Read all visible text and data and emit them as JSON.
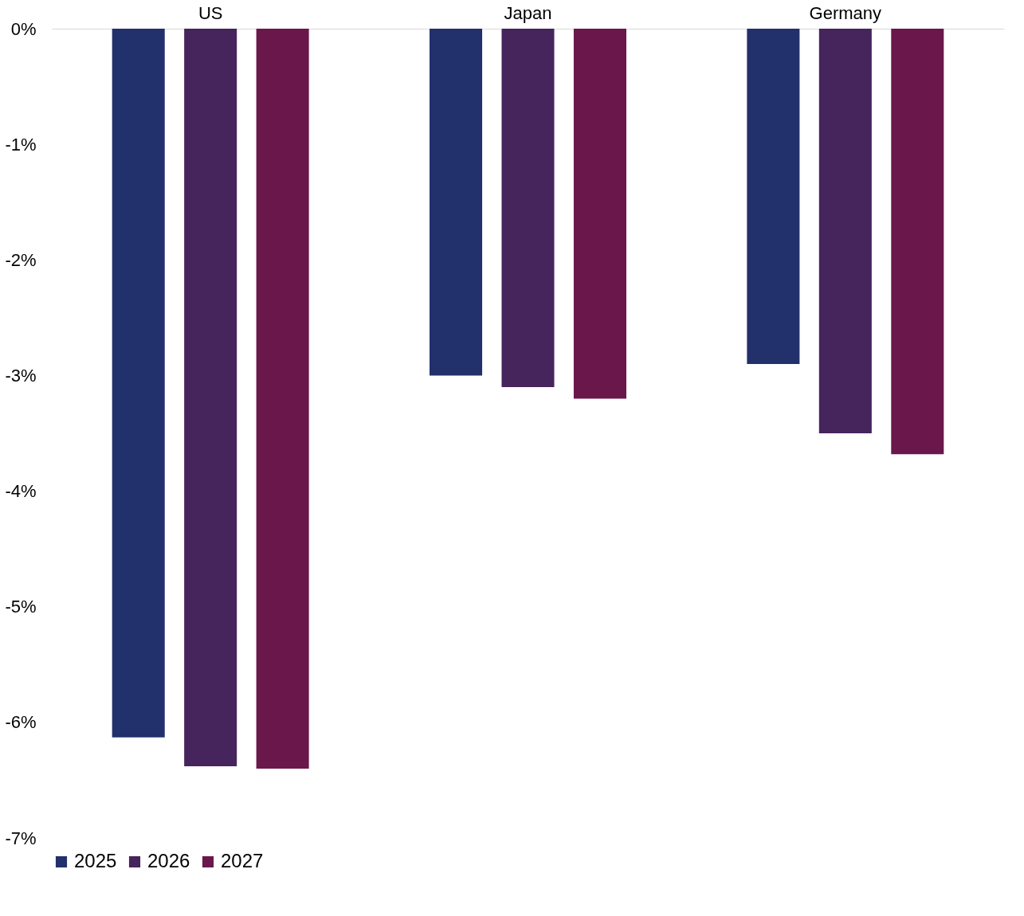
{
  "chart_data": {
    "type": "bar",
    "categories": [
      "US",
      "Japan",
      "Germany"
    ],
    "series": [
      {
        "name": "2025",
        "color": "#22306b",
        "values": [
          -6.13,
          -3.0,
          -2.9
        ]
      },
      {
        "name": "2026",
        "color": "#46245c",
        "values": [
          -6.38,
          -3.1,
          -3.5
        ]
      },
      {
        "name": "2027",
        "color": "#6a174b",
        "values": [
          -6.4,
          -3.2,
          -3.68
        ]
      }
    ],
    "ylim": [
      -7,
      0
    ],
    "yticks": [
      {
        "value": -7,
        "label": "-7%"
      },
      {
        "value": -6,
        "label": "-6%"
      },
      {
        "value": -5,
        "label": "-5%"
      },
      {
        "value": -4,
        "label": "-4%"
      },
      {
        "value": -3,
        "label": "-3%"
      },
      {
        "value": -2,
        "label": "-2%"
      },
      {
        "value": -1,
        "label": "-1%"
      },
      {
        "value": 0,
        "label": "0%"
      }
    ],
    "grid": false,
    "legend": "bottom"
  }
}
